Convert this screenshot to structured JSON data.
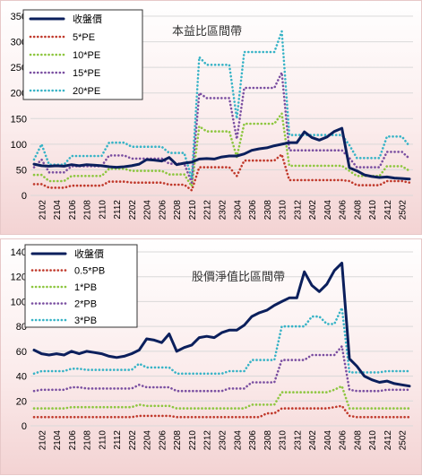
{
  "colors": {
    "close": "#0b1f5c",
    "mult1": "#c0392b",
    "mult2": "#8dc63f",
    "mult3": "#7a4fa1",
    "mult4": "#37b3c6",
    "grid": "#d9d9d9"
  },
  "x_ticks": [
    "2102",
    "2104",
    "2106",
    "2108",
    "2110",
    "2112",
    "2202",
    "2204",
    "2206",
    "2208",
    "2210",
    "2212",
    "2302",
    "2304",
    "2306",
    "2308",
    "2310",
    "2312",
    "2402",
    "2404",
    "2406",
    "2408",
    "2410",
    "2412",
    "2502"
  ],
  "chart_data": [
    {
      "type": "line",
      "title": "本益比區間帶",
      "ylim": [
        0,
        350
      ],
      "y_ticks": [
        0,
        50,
        100,
        150,
        200,
        250,
        300,
        350
      ],
      "grid": "horizontal",
      "legend_position": "top-left",
      "categories": [
        "2101",
        "2102",
        "2103",
        "2104",
        "2105",
        "2106",
        "2107",
        "2108",
        "2109",
        "2110",
        "2111",
        "2112",
        "2201",
        "2202",
        "2203",
        "2204",
        "2205",
        "2206",
        "2207",
        "2208",
        "2209",
        "2210",
        "2211",
        "2212",
        "2301",
        "2302",
        "2303",
        "2304",
        "2305",
        "2306",
        "2307",
        "2308",
        "2309",
        "2310",
        "2311",
        "2312",
        "2401",
        "2402",
        "2403",
        "2404",
        "2405",
        "2406",
        "2407",
        "2408",
        "2409",
        "2410",
        "2411",
        "2412",
        "2501",
        "2502",
        "2503"
      ],
      "series": [
        {
          "name": "收盤價",
          "color_key": "close",
          "style": "solid",
          "values": [
            61,
            58,
            57,
            58,
            57,
            60,
            58,
            60,
            59,
            58,
            56,
            55,
            56,
            58,
            61,
            70,
            69,
            67,
            74,
            60,
            63,
            65,
            71,
            72,
            71,
            75,
            77,
            77,
            81,
            88,
            91,
            93,
            97,
            100,
            103,
            103,
            124,
            113,
            108,
            114,
            125,
            131,
            54,
            48,
            40,
            37,
            35,
            36,
            34,
            33,
            32
          ]
        },
        {
          "name": "5*PE",
          "color_key": "mult1",
          "style": "dotted",
          "values": [
            22,
            22,
            15,
            15,
            15,
            19,
            19,
            19,
            19,
            19,
            27,
            27,
            27,
            25,
            25,
            25,
            25,
            25,
            21,
            21,
            21,
            10,
            55,
            55,
            55,
            55,
            55,
            38,
            68,
            68,
            68,
            68,
            68,
            80,
            30,
            30,
            30,
            30,
            30,
            30,
            30,
            30,
            28,
            20,
            20,
            20,
            20,
            28,
            28,
            28,
            25
          ]
        },
        {
          "name": "10*PE",
          "color_key": "mult2",
          "style": "dotted",
          "values": [
            40,
            40,
            28,
            28,
            28,
            38,
            38,
            38,
            38,
            38,
            52,
            52,
            52,
            48,
            48,
            48,
            48,
            48,
            41,
            41,
            41,
            18,
            135,
            125,
            125,
            125,
            125,
            75,
            140,
            140,
            140,
            140,
            140,
            160,
            58,
            58,
            58,
            58,
            58,
            58,
            58,
            58,
            48,
            38,
            38,
            38,
            38,
            57,
            57,
            57,
            48
          ]
        },
        {
          "name": "15*PE",
          "color_key": "mult3",
          "style": "dotted",
          "values": [
            55,
            70,
            45,
            45,
            45,
            57,
            57,
            57,
            57,
            57,
            78,
            78,
            78,
            72,
            72,
            72,
            72,
            72,
            62,
            62,
            62,
            25,
            200,
            190,
            190,
            190,
            190,
            110,
            210,
            210,
            210,
            210,
            210,
            240,
            88,
            88,
            88,
            88,
            88,
            88,
            88,
            88,
            73,
            55,
            55,
            55,
            55,
            85,
            85,
            85,
            72
          ]
        },
        {
          "name": "20*PE",
          "color_key": "mult4",
          "style": "dotted",
          "values": [
            70,
            100,
            60,
            60,
            60,
            77,
            77,
            77,
            77,
            77,
            103,
            103,
            103,
            95,
            95,
            95,
            95,
            95,
            83,
            83,
            83,
            33,
            270,
            255,
            255,
            255,
            255,
            150,
            280,
            280,
            280,
            280,
            280,
            320,
            118,
            118,
            118,
            118,
            118,
            118,
            118,
            118,
            98,
            73,
            73,
            73,
            73,
            115,
            115,
            115,
            96
          ]
        }
      ]
    },
    {
      "type": "line",
      "title": "股價淨值比區間帶",
      "ylim": [
        0,
        140
      ],
      "y_ticks": [
        0,
        20,
        40,
        60,
        80,
        100,
        120,
        140
      ],
      "grid": "horizontal",
      "legend_position": "top-left",
      "categories": [
        "2101",
        "2102",
        "2103",
        "2104",
        "2105",
        "2106",
        "2107",
        "2108",
        "2109",
        "2110",
        "2111",
        "2112",
        "2201",
        "2202",
        "2203",
        "2204",
        "2205",
        "2206",
        "2207",
        "2208",
        "2209",
        "2210",
        "2211",
        "2212",
        "2301",
        "2302",
        "2303",
        "2304",
        "2305",
        "2306",
        "2307",
        "2308",
        "2309",
        "2310",
        "2311",
        "2312",
        "2401",
        "2402",
        "2403",
        "2404",
        "2405",
        "2406",
        "2407",
        "2408",
        "2409",
        "2410",
        "2411",
        "2412",
        "2501",
        "2502",
        "2503"
      ],
      "series": [
        {
          "name": "收盤價",
          "color_key": "close",
          "style": "solid",
          "values": [
            61,
            58,
            57,
            58,
            57,
            60,
            58,
            60,
            59,
            58,
            56,
            55,
            56,
            58,
            61,
            70,
            69,
            67,
            74,
            60,
            63,
            65,
            71,
            72,
            71,
            75,
            77,
            77,
            81,
            88,
            91,
            93,
            97,
            100,
            103,
            103,
            124,
            113,
            108,
            114,
            125,
            131,
            54,
            48,
            40,
            37,
            35,
            36,
            34,
            33,
            32
          ]
        },
        {
          "name": "0.5*PB",
          "color_key": "mult1",
          "style": "dotted",
          "values": [
            7,
            7,
            7,
            7,
            7,
            7,
            7,
            7,
            7,
            7,
            7,
            7,
            7,
            7,
            8,
            8,
            8,
            8,
            8,
            7,
            7,
            7,
            7,
            7,
            7,
            7,
            7,
            7,
            7,
            7,
            7,
            10,
            10,
            14,
            14,
            14,
            14,
            14,
            14,
            14,
            15,
            16,
            8,
            7,
            7,
            7,
            7,
            7,
            7,
            7,
            7
          ]
        },
        {
          "name": "1*PB",
          "color_key": "mult2",
          "style": "dotted",
          "values": [
            14,
            14,
            14,
            14,
            14,
            15,
            15,
            15,
            15,
            15,
            15,
            15,
            15,
            15,
            17,
            16,
            16,
            16,
            16,
            14,
            14,
            14,
            14,
            14,
            14,
            14,
            14,
            14,
            14,
            17,
            17,
            17,
            17,
            27,
            27,
            27,
            27,
            27,
            27,
            27,
            29,
            32,
            14,
            14,
            14,
            14,
            14,
            14,
            14,
            14,
            14
          ]
        },
        {
          "name": "2*PB",
          "color_key": "mult3",
          "style": "dotted",
          "values": [
            28,
            29,
            29,
            29,
            29,
            31,
            31,
            30,
            30,
            30,
            30,
            30,
            30,
            30,
            33,
            31,
            31,
            31,
            31,
            28,
            28,
            28,
            28,
            28,
            28,
            28,
            30,
            30,
            30,
            35,
            35,
            35,
            35,
            53,
            53,
            53,
            53,
            57,
            57,
            57,
            57,
            64,
            29,
            28,
            28,
            28,
            28,
            29,
            29,
            29,
            29
          ]
        },
        {
          "name": "3*PB",
          "color_key": "mult4",
          "style": "dotted",
          "values": [
            42,
            44,
            44,
            44,
            44,
            46,
            46,
            45,
            45,
            45,
            45,
            45,
            45,
            45,
            50,
            47,
            47,
            47,
            47,
            42,
            42,
            42,
            42,
            42,
            42,
            42,
            44,
            44,
            44,
            53,
            53,
            53,
            53,
            80,
            80,
            80,
            80,
            88,
            88,
            82,
            82,
            95,
            43,
            43,
            43,
            43,
            43,
            44,
            44,
            44,
            44
          ]
        }
      ]
    }
  ]
}
